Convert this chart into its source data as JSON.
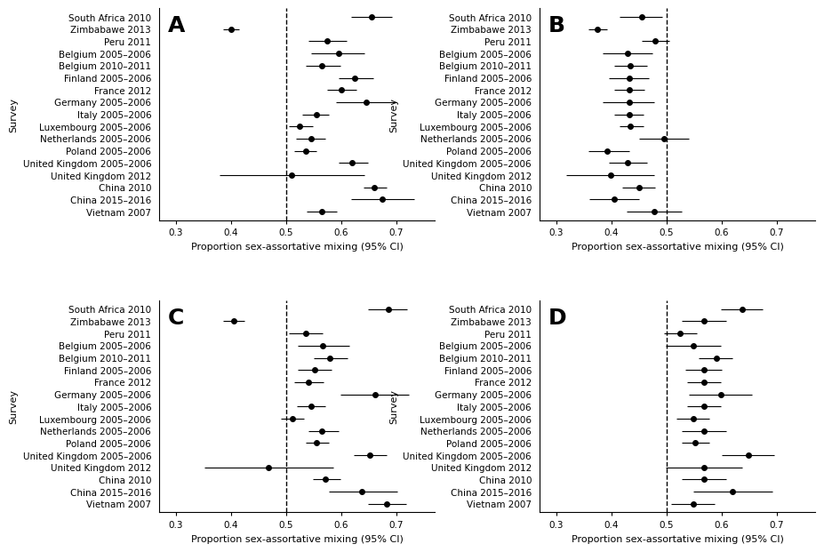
{
  "surveys": [
    "South Africa 2010",
    "Zimbabawe 2013",
    "Peru 2011",
    "Belgium 2005–2006",
    "Belgium 2010–2011",
    "Finland 2005–2006",
    "France 2012",
    "Germany 2005–2006",
    "Italy 2005–2006",
    "Luxembourg 2005–2006",
    "Netherlands 2005–2006",
    "Poland 2005–2006",
    "United Kingdom 2005–2006",
    "United Kingdom 2012",
    "China 2010",
    "China 2015–2016",
    "Vietnam 2007"
  ],
  "panels": {
    "A": {
      "label": "A",
      "centers": [
        0.655,
        0.4,
        0.575,
        0.595,
        0.565,
        0.625,
        0.6,
        0.645,
        0.555,
        0.525,
        0.545,
        0.535,
        0.62,
        0.51,
        0.66,
        0.675,
        0.565
      ],
      "ci_low": [
        0.618,
        0.385,
        0.54,
        0.545,
        0.535,
        0.595,
        0.575,
        0.59,
        0.53,
        0.505,
        0.518,
        0.515,
        0.595,
        0.38,
        0.64,
        0.618,
        0.538
      ],
      "ci_high": [
        0.692,
        0.415,
        0.61,
        0.642,
        0.598,
        0.658,
        0.628,
        0.7,
        0.578,
        0.548,
        0.572,
        0.555,
        0.648,
        0.642,
        0.682,
        0.732,
        0.592
      ],
      "vline": 0.5,
      "xlim": [
        0.27,
        0.77
      ],
      "xticks": [
        0.3,
        0.4,
        0.5,
        0.6,
        0.7
      ]
    },
    "B": {
      "label": "B",
      "centers": [
        0.455,
        0.375,
        0.48,
        0.43,
        0.435,
        0.432,
        0.432,
        0.432,
        0.432,
        0.435,
        0.495,
        0.393,
        0.43,
        0.398,
        0.45,
        0.405,
        0.478
      ],
      "ci_low": [
        0.415,
        0.358,
        0.455,
        0.385,
        0.405,
        0.395,
        0.406,
        0.385,
        0.405,
        0.415,
        0.45,
        0.358,
        0.395,
        0.318,
        0.42,
        0.36,
        0.428
      ],
      "ci_high": [
        0.492,
        0.393,
        0.505,
        0.475,
        0.465,
        0.468,
        0.46,
        0.478,
        0.458,
        0.458,
        0.54,
        0.432,
        0.465,
        0.478,
        0.48,
        0.45,
        0.528
      ],
      "vline": 0.5,
      "xlim": [
        0.27,
        0.77
      ],
      "xticks": [
        0.3,
        0.4,
        0.5,
        0.6,
        0.7
      ]
    },
    "C": {
      "label": "C",
      "centers": [
        0.685,
        0.405,
        0.535,
        0.567,
        0.58,
        0.552,
        0.54,
        0.662,
        0.545,
        0.512,
        0.565,
        0.555,
        0.652,
        0.468,
        0.572,
        0.638,
        0.682
      ],
      "ci_low": [
        0.648,
        0.385,
        0.505,
        0.522,
        0.55,
        0.522,
        0.515,
        0.598,
        0.52,
        0.49,
        0.54,
        0.535,
        0.622,
        0.352,
        0.548,
        0.578,
        0.648
      ],
      "ci_high": [
        0.72,
        0.425,
        0.567,
        0.615,
        0.612,
        0.582,
        0.568,
        0.722,
        0.572,
        0.533,
        0.595,
        0.578,
        0.682,
        0.585,
        0.598,
        0.702,
        0.718
      ],
      "vline": 0.5,
      "xlim": [
        0.27,
        0.77
      ],
      "xticks": [
        0.3,
        0.4,
        0.5,
        0.6,
        0.7
      ]
    },
    "D": {
      "label": "D",
      "centers": [
        0.638,
        0.568,
        0.525,
        0.548,
        0.59,
        0.568,
        0.568,
        0.598,
        0.568,
        0.548,
        0.568,
        0.552,
        0.648,
        0.568,
        0.568,
        0.62,
        0.548
      ],
      "ci_low": [
        0.598,
        0.528,
        0.495,
        0.498,
        0.558,
        0.535,
        0.538,
        0.54,
        0.538,
        0.518,
        0.528,
        0.528,
        0.6,
        0.498,
        0.528,
        0.548,
        0.508
      ],
      "ci_high": [
        0.675,
        0.608,
        0.555,
        0.598,
        0.62,
        0.601,
        0.598,
        0.655,
        0.598,
        0.578,
        0.608,
        0.578,
        0.695,
        0.638,
        0.608,
        0.692,
        0.588
      ],
      "vline": 0.5,
      "xlim": [
        0.27,
        0.77
      ],
      "xticks": [
        0.3,
        0.4,
        0.5,
        0.6,
        0.7
      ]
    }
  },
  "xlabel": "Proportion sex-assortative mixing (95% CI)",
  "ylabel": "Survey",
  "dot_color": "black",
  "dot_size": 4,
  "line_color": "black",
  "vline_style": "--",
  "vline_color": "black",
  "tick_font_size": 7.5,
  "label_font_size": 8,
  "panel_label_font_size": 18,
  "background_color": "white"
}
